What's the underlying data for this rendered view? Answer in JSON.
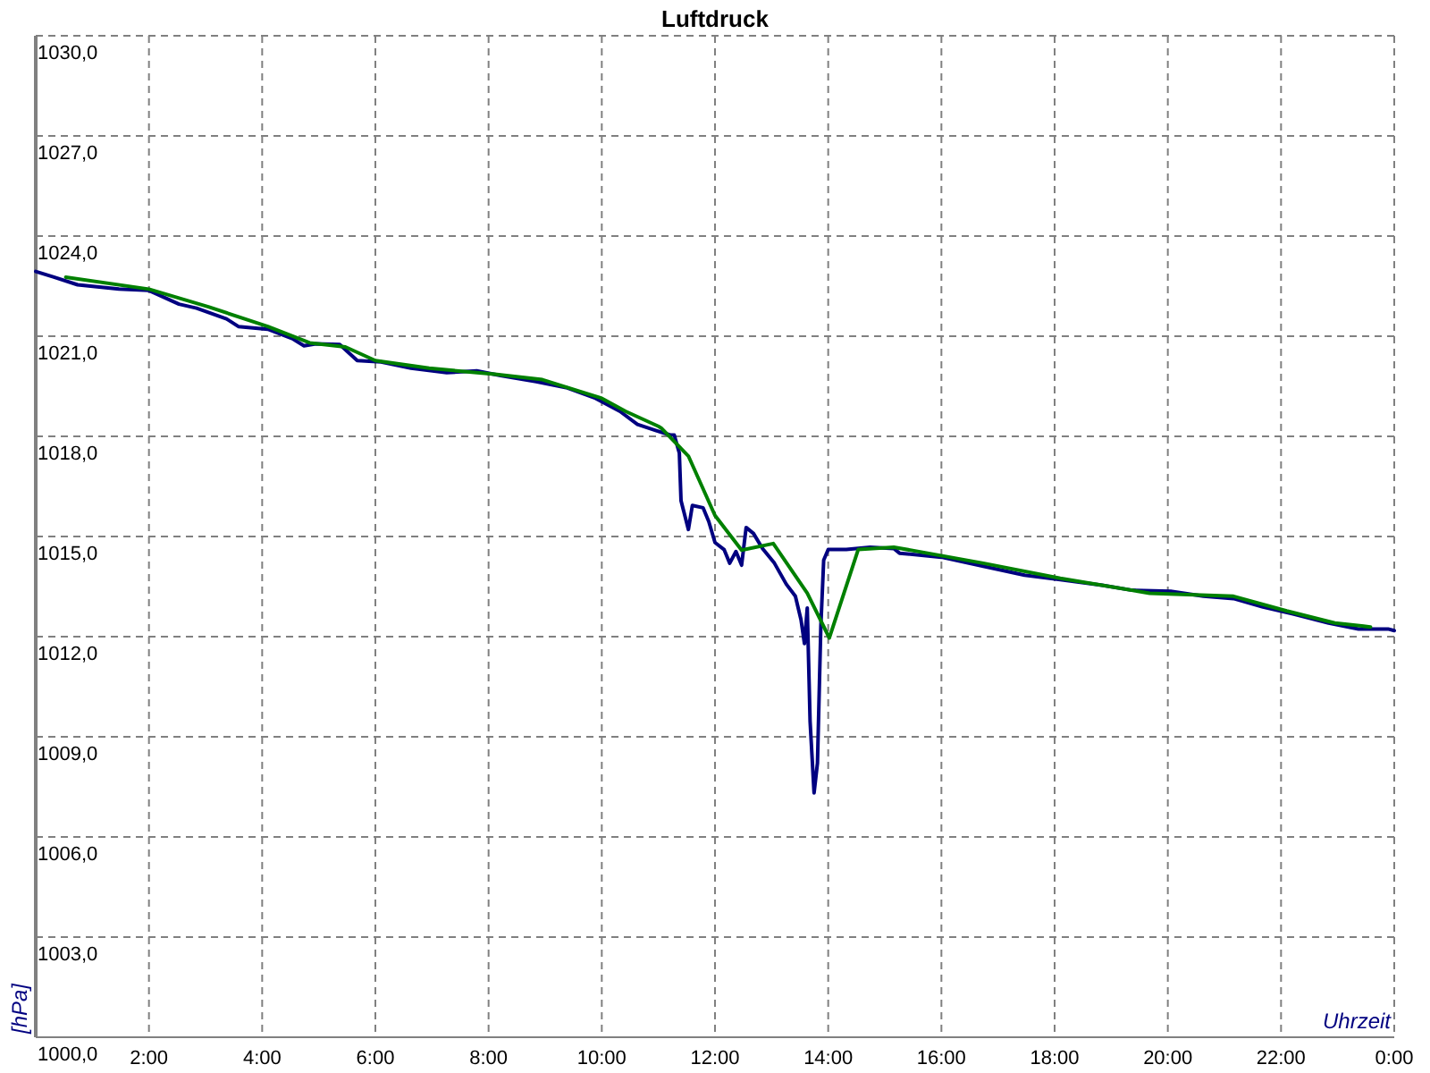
{
  "chart_data": {
    "type": "line",
    "title": "Luftdruck",
    "xlabel": "Uhrzeit",
    "ylabel": "[hPa]",
    "xlim": [
      0,
      24
    ],
    "xticks": [
      {
        "value": 2,
        "label": "2:00"
      },
      {
        "value": 4,
        "label": "4:00"
      },
      {
        "value": 6,
        "label": "6:00"
      },
      {
        "value": 8,
        "label": "8:00"
      },
      {
        "value": 10,
        "label": "10:00"
      },
      {
        "value": 12,
        "label": "12:00"
      },
      {
        "value": 14,
        "label": "14:00"
      },
      {
        "value": 16,
        "label": "16:00"
      },
      {
        "value": 18,
        "label": "18:00"
      },
      {
        "value": 20,
        "label": "20:00"
      },
      {
        "value": 22,
        "label": "22:00"
      },
      {
        "value": 24,
        "label": "0:00"
      }
    ],
    "ylim": [
      1000,
      1030
    ],
    "yticks": [
      {
        "value": 1000,
        "label": "1000,0"
      },
      {
        "value": 1003,
        "label": "1003,0"
      },
      {
        "value": 1006,
        "label": "1006,0"
      },
      {
        "value": 1009,
        "label": "1009,0"
      },
      {
        "value": 1012,
        "label": "1012,0"
      },
      {
        "value": 1015,
        "label": "1015,0"
      },
      {
        "value": 1018,
        "label": "1018,0"
      },
      {
        "value": 1021,
        "label": "1021,0"
      },
      {
        "value": 1024,
        "label": "1024,0"
      },
      {
        "value": 1027,
        "label": "1027,0"
      },
      {
        "value": 1030,
        "label": "1030,0"
      }
    ],
    "grid": true,
    "series": [
      {
        "color": "#000080",
        "x": [
          0,
          0.32,
          0.74,
          1.47,
          2.0,
          2.53,
          2.84,
          3.37,
          3.58,
          4.1,
          4.53,
          4.74,
          4.95,
          5.37,
          5.68,
          6.1,
          6.63,
          7.26,
          7.79,
          8.21,
          8.84,
          9.37,
          9.89,
          10.32,
          10.63,
          10.95,
          11.21,
          11.28,
          11.37,
          11.4,
          11.53,
          11.6,
          11.79,
          11.89,
          12.0,
          12.16,
          12.26,
          12.37,
          12.47,
          12.55,
          12.68,
          12.84,
          13.05,
          13.26,
          13.42,
          13.52,
          13.58,
          13.63,
          13.68,
          13.75,
          13.81,
          13.87,
          13.92,
          14.0,
          14.32,
          14.74,
          15.16,
          15.26,
          16.0,
          16.74,
          17.47,
          18.1,
          18.84,
          19.37,
          20.05,
          20.63,
          21.16,
          21.68,
          22.21,
          22.84,
          23.37,
          23.89,
          24.0
        ],
        "values": [
          1022.94,
          1022.77,
          1022.54,
          1022.41,
          1022.37,
          1021.96,
          1021.84,
          1021.52,
          1021.29,
          1021.21,
          1020.93,
          1020.71,
          1020.77,
          1020.75,
          1020.27,
          1020.23,
          1020.04,
          1019.91,
          1019.96,
          1019.82,
          1019.64,
          1019.46,
          1019.14,
          1018.75,
          1018.36,
          1018.18,
          1018.04,
          1018.04,
          1017.5,
          1016.07,
          1015.21,
          1015.93,
          1015.86,
          1015.45,
          1014.82,
          1014.61,
          1014.2,
          1014.55,
          1014.14,
          1015.27,
          1015.09,
          1014.64,
          1014.2,
          1013.57,
          1013.21,
          1012.5,
          1011.79,
          1012.86,
          1009.46,
          1007.32,
          1008.21,
          1012.32,
          1014.29,
          1014.61,
          1014.61,
          1014.68,
          1014.64,
          1014.5,
          1014.38,
          1014.11,
          1013.84,
          1013.71,
          1013.54,
          1013.39,
          1013.36,
          1013.21,
          1013.14,
          1012.89,
          1012.68,
          1012.41,
          1012.23,
          1012.23,
          1012.18
        ]
      },
      {
        "color": "#008000",
        "x": [
          0.53,
          2.0,
          3.05,
          4.1,
          4.84,
          5.47,
          6.0,
          6.95,
          8.11,
          8.95,
          10.0,
          10.42,
          11.0,
          11.05,
          11.53,
          12.0,
          12.47,
          13.03,
          13.63,
          14.02,
          14.53,
          15.16,
          16.74,
          18.1,
          19.68,
          21.16,
          22.1,
          22.95,
          23.58
        ],
        "values": [
          1022.77,
          1022.41,
          1021.88,
          1021.29,
          1020.8,
          1020.68,
          1020.27,
          1020.04,
          1019.86,
          1019.7,
          1019.14,
          1018.75,
          1018.3,
          1018.25,
          1017.41,
          1015.63,
          1014.59,
          1014.79,
          1013.3,
          1011.96,
          1014.61,
          1014.68,
          1014.2,
          1013.75,
          1013.3,
          1013.21,
          1012.77,
          1012.41,
          1012.29
        ]
      }
    ]
  }
}
